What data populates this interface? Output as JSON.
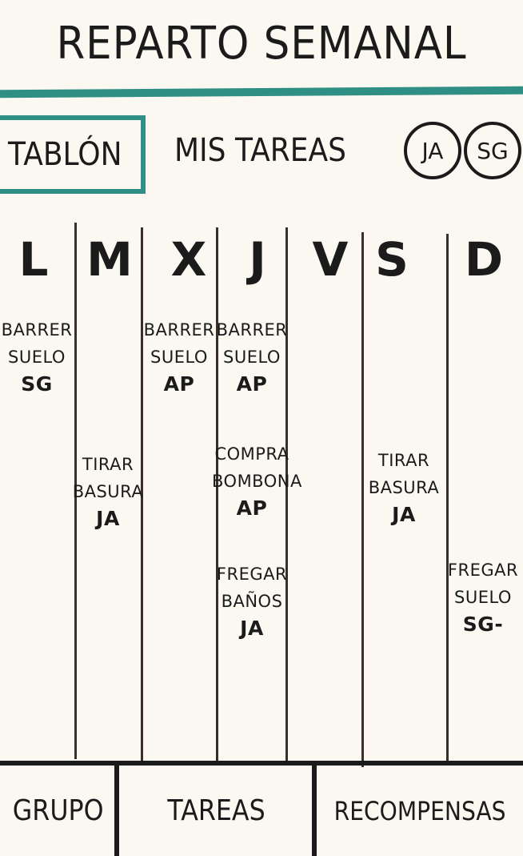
{
  "header": {
    "title": "REPARTO SEMANAL"
  },
  "nav": {
    "tabs": [
      {
        "label": "TABLÓN",
        "active": true
      },
      {
        "label": "MIS TAREAS",
        "active": false
      }
    ],
    "avatars": [
      "JA",
      "SG"
    ]
  },
  "board": {
    "days": [
      "L",
      "M",
      "X",
      "J",
      "V",
      "S",
      "D"
    ],
    "tasks": {
      "L": [
        {
          "line1": "BARRER",
          "line2": "SUELO",
          "who": "SG"
        }
      ],
      "M": [
        {
          "line1": "TIRAR",
          "line2": "BASURA",
          "who": "JA"
        }
      ],
      "X": [
        {
          "line1": "BARRER",
          "line2": "SUELO",
          "who": "AP"
        }
      ],
      "J": [
        {
          "line1": "BARRER",
          "line2": "SUELO",
          "who": "AP"
        },
        {
          "line1": "COMPRA",
          "line2": "BOMBONA",
          "who": "AP"
        },
        {
          "line1": "FREGAR",
          "line2": "BAÑOS",
          "who": "JA"
        }
      ],
      "V": [],
      "S": [
        {
          "line1": "TIRAR",
          "line2": "BASURA",
          "who": "JA"
        }
      ],
      "D": [
        {
          "line1": "FREGAR",
          "line2": "SUELO",
          "who": "SG-"
        }
      ]
    }
  },
  "bottom_nav": {
    "items": [
      "GRUPO",
      "TAREAS",
      "RECOMPENSAS"
    ]
  },
  "colors": {
    "accent": "#2f8f84",
    "ink": "#1b1b1b",
    "paper": "#fbf8f2"
  }
}
